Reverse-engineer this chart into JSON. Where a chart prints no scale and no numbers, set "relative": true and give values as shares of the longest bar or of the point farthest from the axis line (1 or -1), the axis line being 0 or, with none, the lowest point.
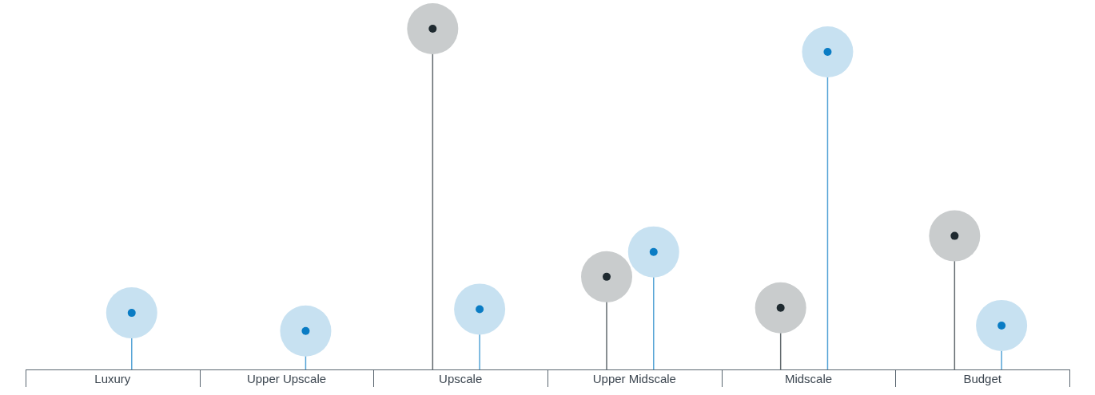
{
  "chart_data": {
    "type": "lollipop",
    "relative": true,
    "categories": [
      "Luxury",
      "Upper Upscale",
      "Upscale",
      "Upper Midscale",
      "Midscale",
      "Budget"
    ],
    "series": [
      {
        "color": "#1f2a30",
        "values": [
          null,
          null,
          1,
          0.272,
          0.181,
          0.392
        ]
      },
      {
        "color": "#0a7cc4",
        "values": [
          0.166,
          0.113,
          0.177,
          0.345,
          0.932,
          0.129
        ]
      }
    ],
    "marker": "circle",
    "legend": false,
    "grid": false
  }
}
